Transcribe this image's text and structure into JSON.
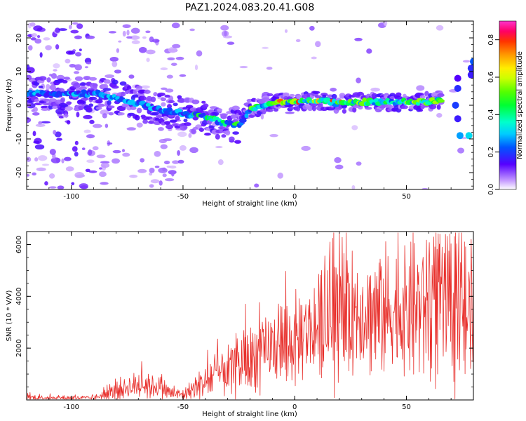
{
  "title": "PAZ1.2024.083.20.41.G08",
  "chart_data": [
    {
      "type": "heatmap",
      "xlabel": "Height of straight line (km)",
      "ylabel": "Frequency (Hz)",
      "xlim": [
        -120,
        80
      ],
      "ylim": [
        -25,
        25
      ],
      "xticks": [
        -100,
        -50,
        0,
        50
      ],
      "yticks": [
        -20,
        -10,
        0,
        10,
        20
      ],
      "colorbar": {
        "label": "Normalized spectral amplitude",
        "range": [
          0.0,
          0.9
        ],
        "ticks": [
          "0.0",
          "0.2",
          "0.4",
          "0.6",
          "0.8"
        ],
        "colormap": "gist_ncar"
      },
      "ridge": {
        "description_points_x": [
          -120,
          -90,
          -75,
          -60,
          -50,
          -40,
          -30,
          -25,
          -20,
          -10,
          0,
          10,
          20,
          30,
          40,
          50,
          60,
          68,
          72,
          76,
          80
        ],
        "description_points_y": [
          3.5,
          3.5,
          1.5,
          -1.5,
          -2.5,
          -3.5,
          -5.5,
          -6.0,
          -1.0,
          1.0,
          1.0,
          1.5,
          0.5,
          1.0,
          1.0,
          1.0,
          1.0,
          2.0,
          -5.0,
          -9.0,
          9.0
        ]
      }
    },
    {
      "type": "line",
      "xlabel": "Height of straight line (km)",
      "ylabel": "SNR (10 * V/V)",
      "xlim": [
        -120,
        80
      ],
      "ylim": [
        0,
        6500
      ],
      "xticks": [
        -100,
        -50,
        0,
        50
      ],
      "yticks": [
        2000,
        4000,
        6000
      ],
      "color": "#e8302c",
      "envelope": {
        "x": [
          -120,
          -100,
          -90,
          -85,
          -80,
          -70,
          -60,
          -55,
          -50,
          -45,
          -40,
          -35,
          -30,
          -25,
          -20,
          -15,
          -10,
          -5,
          0,
          5,
          10,
          20,
          30,
          40,
          50,
          55,
          60,
          65,
          70,
          80
        ],
        "mean": [
          100,
          80,
          80,
          200,
          350,
          600,
          500,
          250,
          200,
          450,
          700,
          1000,
          1100,
          1300,
          1500,
          1800,
          2000,
          2200,
          2200,
          2700,
          2800,
          3200,
          3400,
          3400,
          3400,
          3600,
          3600,
          3700,
          3400,
          3400
        ],
        "spread": [
          70,
          60,
          60,
          120,
          250,
          400,
          300,
          150,
          150,
          300,
          500,
          600,
          700,
          800,
          800,
          900,
          1000,
          1100,
          1100,
          1200,
          1300,
          1500,
          1600,
          1700,
          1800,
          1900,
          2000,
          2000,
          1900,
          1800
        ]
      },
      "notable_peaks": [
        {
          "x": -22,
          "y": 3700
        },
        {
          "x": 12,
          "y": 5000
        },
        {
          "x": 52,
          "y": 6100
        },
        {
          "x": 65,
          "y": 6400
        },
        {
          "x": 72,
          "y": 6000
        }
      ]
    }
  ]
}
